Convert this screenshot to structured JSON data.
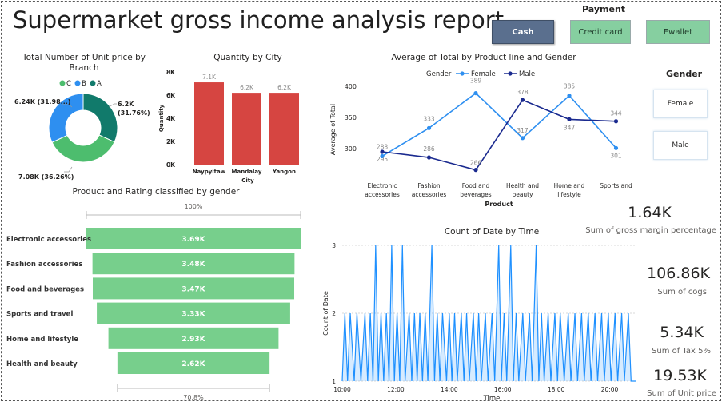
{
  "report": {
    "title": "Supermarket gross income analysis report"
  },
  "payment": {
    "title": "Payment",
    "options": [
      "Cash",
      "Credit card",
      "Ewallet"
    ]
  },
  "gender_slicer": {
    "title": "Gender",
    "options": [
      "Female",
      "Male"
    ]
  },
  "kpis": [
    {
      "value": "1.64K",
      "label": "Sum of gross margin percentage"
    },
    {
      "value": "106.86K",
      "label": "Sum of cogs"
    },
    {
      "value": "5.34K",
      "label": "Sum of Tax 5%"
    },
    {
      "value": "19.53K",
      "label": "Sum of Unit price"
    }
  ],
  "colors": {
    "green_c": "#4dbd6e",
    "blue_b": "#2e8ff0",
    "teal_a": "#117a6b",
    "bar_red": "#d64541",
    "funnel_green": "#77cf8c",
    "female": "#2e8ff0",
    "male": "#1a2a8f",
    "time_line": "#1e90ff"
  },
  "chart_data": [
    {
      "type": "pie",
      "title": "Total Number of Unit price by Branch",
      "legend": [
        "C",
        "B",
        "A"
      ],
      "slices": [
        {
          "name": "C",
          "value": 7.08,
          "label": "7.08K (36.26%)"
        },
        {
          "name": "A",
          "value": 6.2,
          "label": "6.2K (31.76%)"
        },
        {
          "name": "B",
          "value": 6.24,
          "label": "6.24K (31.98...)"
        }
      ]
    },
    {
      "type": "bar",
      "title": "Quantity by City",
      "categories": [
        "Naypyitaw",
        "Mandalay",
        "Yangon"
      ],
      "values": [
        7.1,
        6.2,
        6.2
      ],
      "value_labels": [
        "7.1K",
        "6.2K",
        "6.2K"
      ],
      "yticks": [
        "0K",
        "2K",
        "4K",
        "6K",
        "8K"
      ],
      "ylim": [
        0,
        8
      ],
      "xlabel": "City",
      "ylabel": "Quantity"
    },
    {
      "type": "line",
      "title": "Average of Total by Product line and Gender",
      "legend_title": "Gender",
      "categories": [
        "Electronic accessories",
        "Fashion accessories",
        "Food and beverages",
        "Health and beauty",
        "Home and lifestyle",
        "Sports and travel"
      ],
      "category_lines": [
        [
          "Electronic",
          "accessories"
        ],
        [
          "Fashion",
          "accessories"
        ],
        [
          "Food and",
          "beverages"
        ],
        [
          "Health and",
          "beauty"
        ],
        [
          "Home and",
          "lifestyle"
        ],
        [
          "Sports and",
          ""
        ]
      ],
      "series": [
        {
          "name": "Female",
          "values": [
            288,
            333,
            389,
            317,
            385,
            301
          ]
        },
        {
          "name": "Male",
          "values": [
            295,
            286,
            266,
            378,
            347,
            344
          ]
        }
      ],
      "yticks": [
        "300",
        "350",
        "400"
      ],
      "ylim": [
        263,
        400
      ],
      "xlabel": "Product",
      "ylabel": "Average of Total"
    },
    {
      "type": "bar",
      "title": "Product and Rating classified by gender",
      "categories": [
        "Electronic accessories",
        "Fashion accessories",
        "Food and beverages",
        "Sports and travel",
        "Home and lifestyle",
        "Health and beauty"
      ],
      "values": [
        3.69,
        3.48,
        3.47,
        3.33,
        2.93,
        2.62
      ],
      "value_labels": [
        "3.69K",
        "3.48K",
        "3.47K",
        "3.33K",
        "2.93K",
        "2.62K"
      ],
      "top_label": "100%",
      "bottom_label": "70.8%"
    },
    {
      "type": "area",
      "title": "Count of Date by Time",
      "xticks": [
        "10:00",
        "12:00",
        "14:00",
        "16:00",
        "18:00",
        "20:00"
      ],
      "yticks": [
        "1",
        "2",
        "3"
      ],
      "ylim": [
        1,
        3
      ],
      "xlim": [
        10,
        21
      ],
      "points": [
        [
          10.0,
          1
        ],
        [
          10.1,
          2
        ],
        [
          10.2,
          1
        ],
        [
          10.3,
          2
        ],
        [
          10.45,
          1
        ],
        [
          10.55,
          2
        ],
        [
          10.7,
          1
        ],
        [
          10.85,
          2
        ],
        [
          10.95,
          1
        ],
        [
          11.05,
          2
        ],
        [
          11.15,
          1
        ],
        [
          11.25,
          3
        ],
        [
          11.35,
          1
        ],
        [
          11.45,
          2
        ],
        [
          11.55,
          1
        ],
        [
          11.65,
          2
        ],
        [
          11.75,
          1
        ],
        [
          11.85,
          3
        ],
        [
          11.95,
          1
        ],
        [
          12.05,
          2
        ],
        [
          12.15,
          1
        ],
        [
          12.25,
          3
        ],
        [
          12.35,
          1
        ],
        [
          12.5,
          2
        ],
        [
          12.6,
          1
        ],
        [
          12.7,
          2
        ],
        [
          12.8,
          1
        ],
        [
          12.9,
          2
        ],
        [
          13.0,
          1
        ],
        [
          13.1,
          2
        ],
        [
          13.2,
          1
        ],
        [
          13.35,
          3
        ],
        [
          13.45,
          1
        ],
        [
          13.55,
          2
        ],
        [
          13.65,
          1
        ],
        [
          13.75,
          2
        ],
        [
          13.9,
          1
        ],
        [
          14.0,
          2
        ],
        [
          14.1,
          1
        ],
        [
          14.2,
          2
        ],
        [
          14.3,
          1
        ],
        [
          14.45,
          2
        ],
        [
          14.55,
          1
        ],
        [
          14.65,
          2
        ],
        [
          14.75,
          1
        ],
        [
          14.9,
          2
        ],
        [
          15.0,
          1
        ],
        [
          15.1,
          2
        ],
        [
          15.2,
          1
        ],
        [
          15.35,
          2
        ],
        [
          15.45,
          1
        ],
        [
          15.6,
          2
        ],
        [
          15.7,
          1
        ],
        [
          15.85,
          3
        ],
        [
          15.95,
          1
        ],
        [
          16.05,
          2
        ],
        [
          16.15,
          1
        ],
        [
          16.3,
          3
        ],
        [
          16.4,
          1
        ],
        [
          16.5,
          2
        ],
        [
          16.6,
          1
        ],
        [
          16.75,
          2
        ],
        [
          16.85,
          1
        ],
        [
          17.0,
          2
        ],
        [
          17.1,
          1
        ],
        [
          17.25,
          3
        ],
        [
          17.35,
          1
        ],
        [
          17.45,
          2
        ],
        [
          17.55,
          1
        ],
        [
          17.7,
          2
        ],
        [
          17.8,
          1
        ],
        [
          17.95,
          2
        ],
        [
          18.05,
          1
        ],
        [
          18.15,
          2
        ],
        [
          18.3,
          1
        ],
        [
          18.45,
          2
        ],
        [
          18.55,
          1
        ],
        [
          18.7,
          2
        ],
        [
          18.8,
          1
        ],
        [
          18.95,
          2
        ],
        [
          19.05,
          1
        ],
        [
          19.2,
          2
        ],
        [
          19.3,
          1
        ],
        [
          19.45,
          2
        ],
        [
          19.55,
          1
        ],
        [
          19.7,
          2
        ],
        [
          19.8,
          1
        ],
        [
          19.95,
          2
        ],
        [
          20.05,
          1
        ],
        [
          20.2,
          2
        ],
        [
          20.3,
          1
        ],
        [
          20.45,
          2
        ],
        [
          20.55,
          1
        ],
        [
          20.7,
          2
        ],
        [
          20.8,
          1
        ],
        [
          21.0,
          1
        ]
      ],
      "xlabel": "Time",
      "ylabel": "Count of Date"
    }
  ]
}
